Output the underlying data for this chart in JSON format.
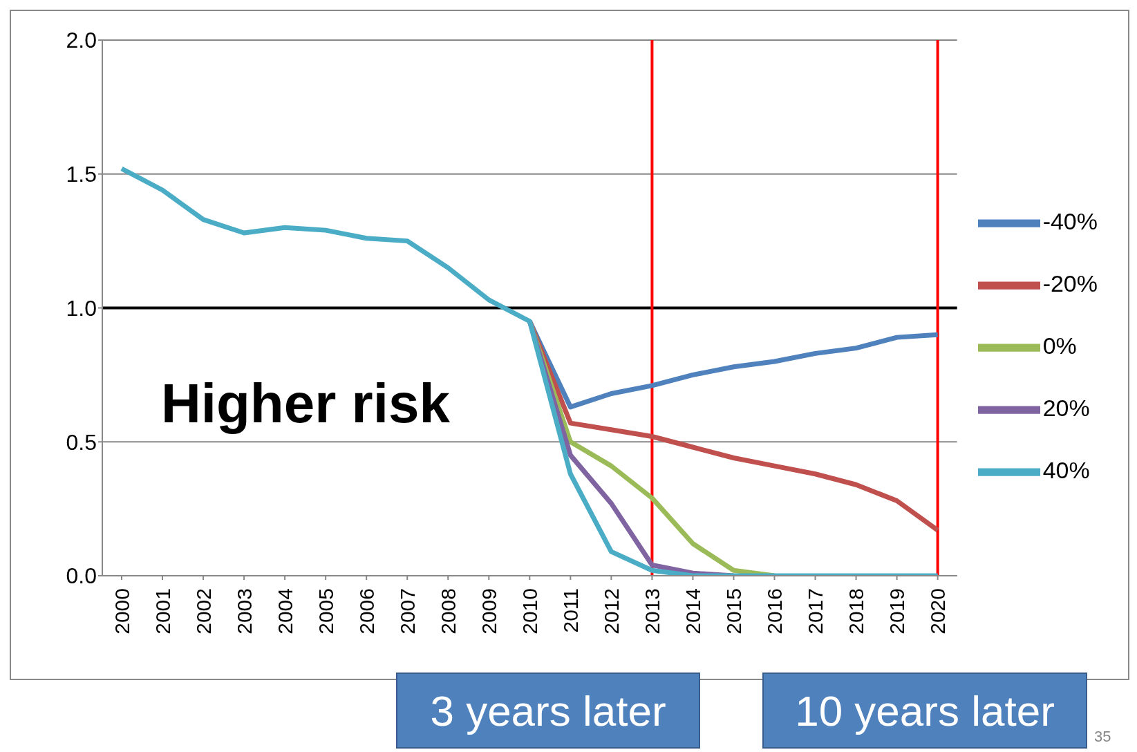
{
  "chart_data": {
    "type": "line",
    "categories": [
      "2000",
      "2001",
      "2002",
      "2003",
      "2004",
      "2005",
      "2006",
      "2007",
      "2008",
      "2009",
      "2010",
      "2011",
      "2012",
      "2013",
      "2014",
      "2015",
      "2016",
      "2017",
      "2018",
      "2019",
      "2020"
    ],
    "series": [
      {
        "name": "-40%",
        "color": "#4f81bd",
        "values": [
          null,
          null,
          null,
          null,
          null,
          null,
          null,
          null,
          null,
          null,
          0.95,
          0.63,
          0.68,
          0.71,
          0.75,
          0.78,
          0.8,
          0.83,
          0.85,
          0.89,
          0.9
        ]
      },
      {
        "name": "-20%",
        "color": "#c0504d",
        "values": [
          null,
          null,
          null,
          null,
          null,
          null,
          null,
          null,
          null,
          null,
          0.95,
          0.57,
          0.545,
          0.52,
          0.48,
          0.44,
          0.41,
          0.38,
          0.34,
          0.28,
          0.17
        ]
      },
      {
        "name": "0%",
        "color": "#9bbb59",
        "values": [
          null,
          null,
          null,
          null,
          null,
          null,
          null,
          null,
          null,
          null,
          0.95,
          0.5,
          0.41,
          0.29,
          0.12,
          0.02,
          0,
          null,
          null,
          null,
          null
        ]
      },
      {
        "name": "20%",
        "color": "#8064a2",
        "values": [
          null,
          null,
          null,
          null,
          null,
          null,
          null,
          null,
          null,
          null,
          0.95,
          0.45,
          0.27,
          0.04,
          0.01,
          0,
          null,
          null,
          null,
          null,
          null
        ]
      },
      {
        "name": "40%",
        "color": "#4bacc6",
        "values": [
          1.52,
          1.44,
          1.33,
          1.28,
          1.3,
          1.29,
          1.26,
          1.25,
          1.15,
          1.03,
          0.95,
          0.38,
          0.09,
          0.02,
          0,
          0,
          0,
          0,
          0,
          0,
          0
        ]
      }
    ],
    "ylim": [
      0,
      2.0
    ],
    "yticks": [
      {
        "value": 0,
        "label": "0.0"
      },
      {
        "value": 0.5,
        "label": "0.5"
      },
      {
        "value": 1,
        "label": "1.0"
      },
      {
        "value": 1.5,
        "label": "1.5"
      },
      {
        "value": 2,
        "label": "2.0"
      }
    ],
    "grid": "y",
    "legend": "right",
    "marker": "none",
    "line_style": "solid",
    "ref_lines": [
      {
        "axis": "y",
        "value": 1,
        "color": "#000000"
      },
      {
        "axis": "x",
        "value": "2013",
        "color": "#ff0000"
      },
      {
        "axis": "x",
        "value": "2020",
        "color": "#ff0000"
      }
    ],
    "annotations": [
      "Higher risk",
      "3 years later",
      "10 years later",
      "35"
    ]
  }
}
